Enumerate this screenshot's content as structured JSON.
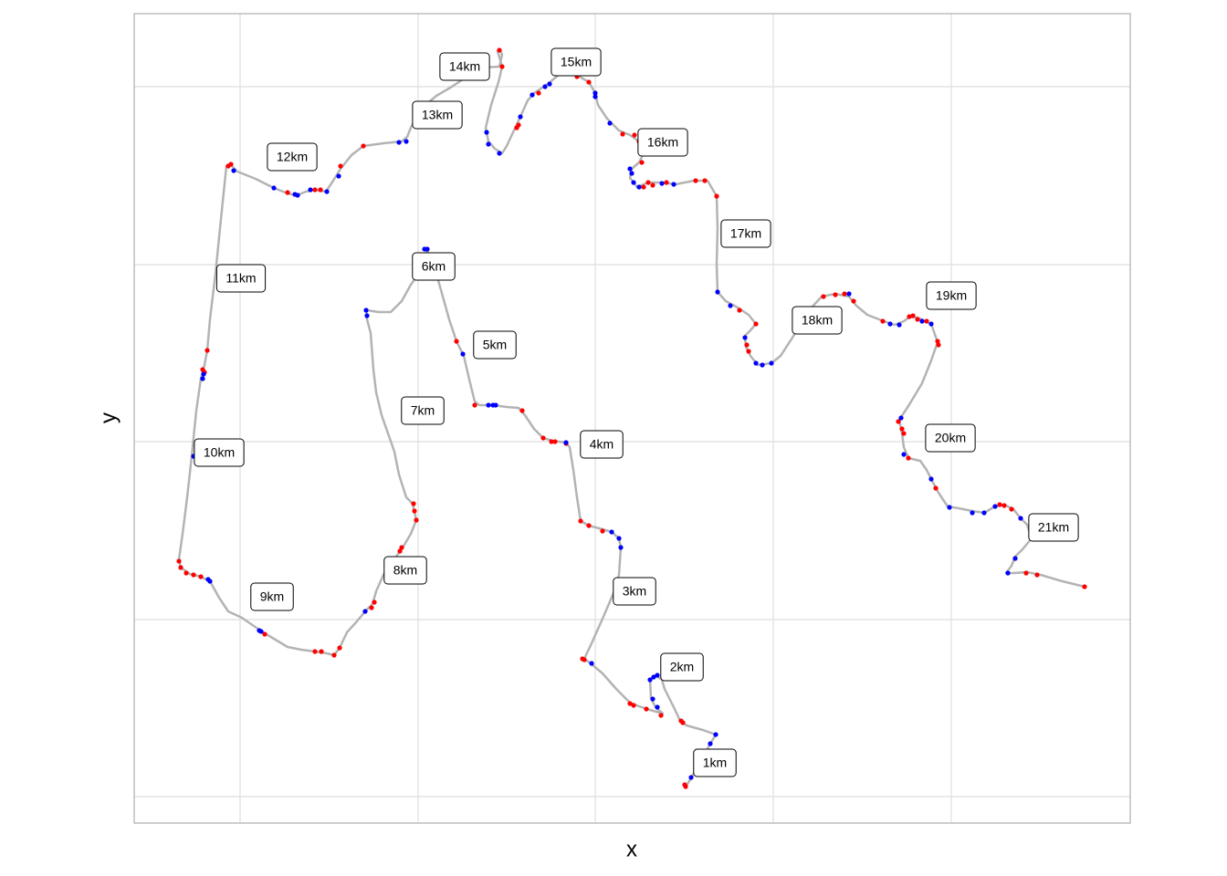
{
  "chart_data": {
    "type": "line",
    "xlabel": "x",
    "ylabel": "y",
    "color": "#b3b3b3",
    "grid": true,
    "xlim": [
      147,
      1238
    ],
    "ylim": [
      -902,
      -15
    ],
    "xticks": [
      263,
      458,
      652,
      847,
      1042
    ],
    "yticks": [
      -873,
      -679,
      -484,
      -290,
      -95
    ],
    "x": [
      751,
      757,
      778,
      784,
      770,
      752,
      745,
      738,
      733,
      728,
      725,
      718,
      712,
      713,
      718,
      726,
      712,
      700,
      690,
      675,
      660,
      647,
      640,
      648,
      660,
      672,
      678,
      680,
      678,
      670,
      660,
      645,
      636,
      632,
      628,
      624,
      620,
      605,
      595,
      585,
      575,
      568,
      555,
      540,
      525,
      520,
      515,
      508,
      500,
      492,
      485,
      478,
      472,
      468,
      462,
      450,
      440,
      428,
      415,
      402,
      401,
      406,
      409,
      412,
      418,
      425,
      432,
      437,
      445,
      452,
      456,
      450,
      440,
      430,
      420,
      412,
      408,
      400,
      390,
      380,
      372,
      366,
      358,
      345,
      330,
      315,
      305,
      290,
      278,
      265,
      250,
      240,
      230,
      220,
      208,
      198,
      196,
      200,
      205,
      210,
      215,
      220,
      224,
      227,
      230,
      236,
      242,
      248,
      253,
      260,
      280,
      300,
      315,
      325,
      335,
      345,
      357,
      365,
      373,
      385,
      398,
      420,
      440,
      446,
      450,
      460,
      478,
      495,
      510,
      530,
      547,
      550,
      548,
      545,
      550,
      546,
      538,
      532,
      535,
      542,
      550,
      555,
      562,
      570,
      578,
      585,
      600,
      612,
      628,
      645,
      652,
      655,
      665,
      678,
      690,
      700,
      704,
      700,
      692,
      690,
      698,
      710,
      725,
      740,
      760,
      775,
      785,
      786,
      785,
      786,
      795,
      808,
      820,
      828,
      822,
      816,
      817,
      822,
      830,
      845,
      855,
      868,
      880,
      888,
      900,
      915,
      930,
      938,
      950,
      968,
      980,
      990,
      997,
      1005,
      1020,
      1027,
      1020,
      1010,
      995,
      985,
      988,
      990,
      995,
      1008,
      1015,
      1020,
      1028,
      1038,
      1050,
      1065,
      1078,
      1090,
      1100,
      1110,
      1118,
      1125,
      1130,
      1120,
      1112,
      1108,
      1102,
      1110,
      1125,
      1140,
      1160,
      1188
    ],
    "y": [
      -862,
      -853,
      -815,
      -805,
      -800,
      -795,
      -790,
      -775,
      -765,
      -755,
      -745,
      -740,
      -745,
      -765,
      -775,
      -782,
      -778,
      -774,
      -770,
      -755,
      -738,
      -727,
      -722,
      -705,
      -678,
      -650,
      -630,
      -600,
      -590,
      -583,
      -580,
      -576,
      -571,
      -545,
      -515,
      -490,
      -485,
      -483,
      -480,
      -470,
      -455,
      -447,
      -446,
      -444,
      -444,
      -440,
      -420,
      -390,
      -374,
      -350,
      -325,
      -300,
      -290,
      -273,
      -295,
      -312,
      -330,
      -342,
      -342,
      -340,
      -346,
      -365,
      -405,
      -430,
      -455,
      -475,
      -495,
      -520,
      -545,
      -552,
      -570,
      -585,
      -602,
      -615,
      -630,
      -648,
      -662,
      -670,
      -682,
      -693,
      -710,
      -718,
      -716,
      -714,
      -712,
      -709,
      -703,
      -694,
      -686,
      -677,
      -670,
      -655,
      -637,
      -632,
      -629,
      -622,
      -613,
      -585,
      -545,
      -500,
      -450,
      -415,
      -400,
      -384,
      -350,
      -300,
      -240,
      -182,
      -181,
      -188,
      -196,
      -206,
      -212,
      -214,
      -210,
      -208,
      -210,
      -198,
      -185,
      -170,
      -160,
      -157,
      -155,
      -150,
      -140,
      -120,
      -105,
      -95,
      -85,
      -74,
      -73,
      -60,
      -55,
      -56,
      -73,
      -90,
      -115,
      -140,
      -155,
      -163,
      -168,
      -160,
      -145,
      -128,
      -110,
      -102,
      -92,
      -82,
      -80,
      -90,
      -102,
      -115,
      -130,
      -143,
      -148,
      -155,
      -170,
      -178,
      -185,
      -195,
      -205,
      -200,
      -200,
      -202,
      -198,
      -198,
      -215,
      -250,
      -290,
      -320,
      -330,
      -337,
      -345,
      -355,
      -362,
      -368,
      -380,
      -390,
      -400,
      -398,
      -390,
      -370,
      -350,
      -338,
      -325,
      -322,
      -325,
      -335,
      -345,
      -352,
      -356,
      -352,
      -347,
      -348,
      -355,
      -375,
      -395,
      -420,
      -445,
      -460,
      -475,
      -490,
      -502,
      -505,
      -515,
      -525,
      -540,
      -555,
      -557,
      -560,
      -562,
      -555,
      -553,
      -558,
      -568,
      -575,
      -590,
      -602,
      -610,
      -620,
      -628,
      -628,
      -627,
      -630,
      -636,
      -643
    ],
    "points": [
      {
        "color": "#ff0000",
        "x": [
          751,
          750,
          748,
          746,
          724,
          708,
          694,
          690,
          640,
          638,
          636,
          645,
          660,
          595,
          604,
          608,
          500,
          520,
          572,
          620,
          453,
          454,
          456,
          440,
          438,
          410,
          407,
          372,
          366,
          352,
          345,
          290,
          196,
          198,
          204,
          212,
          220,
          227,
          224,
          222,
          250,
          253,
          315,
          345,
          351,
          373,
          398,
          547,
          550,
          566,
          568,
          590,
          632,
          645,
          682,
          695,
          700,
          703,
          705,
          710,
          715,
          730,
          762,
          772,
          785,
          810,
          828,
          818,
          820,
          902,
          915,
          925,
          935,
          967,
          996,
          1000,
          1005,
          1015,
          1027,
          1028,
          984,
          988,
          990,
          995,
          1025,
          1095,
          1100,
          1108,
          1124,
          1136,
          1188
        ],
        "y": [
          -862,
          -860,
          -792,
          -790,
          -784,
          -777,
          -773,
          -771,
          -723,
          -722,
          -571,
          -576,
          -582,
          -480,
          -484,
          -484,
          -374,
          -444,
          -450,
          -486,
          -552,
          -560,
          -570,
          -600,
          -604,
          -660,
          -666,
          -710,
          -718,
          -714,
          -714,
          -695,
          -615,
          -622,
          -628,
          -630,
          -632,
          -384,
          -408,
          -405,
          -182,
          -180,
          -211,
          -208,
          -208,
          -182,
          -160,
          -55,
          -73,
          -140,
          -137,
          -102,
          -84,
          -90,
          -147,
          -148,
          -155,
          -178,
          -205,
          -200,
          -203,
          -200,
          -198,
          -198,
          -215,
          -340,
          -355,
          -378,
          -385,
          -325,
          -323,
          -322,
          -330,
          -352,
          -347,
          -346,
          -350,
          -352,
          -374,
          -378,
          -462,
          -470,
          -475,
          -502,
          -535,
          -553,
          -554,
          -558,
          -628,
          -630,
          -643
        ]
      },
      {
        "color": "#0000ff",
        "x": [
          757,
          778,
          784,
          712,
          716,
          720,
          715,
          720,
          648,
          678,
          680,
          670,
          620,
          507,
          535,
          540,
          543,
          468,
          465,
          401,
          402,
          212,
          222,
          223,
          256,
          300,
          323,
          326,
          340,
          358,
          371,
          437,
          445,
          533,
          535,
          547,
          570,
          583,
          597,
          602,
          652,
          652,
          668,
          690,
          692,
          694,
          700,
          725,
          738,
          786,
          800,
          816,
          828,
          835,
          845,
          930,
          975,
          985,
          1010,
          1020,
          987,
          990,
          1020,
          1040,
          1065,
          1078,
          1090,
          1118,
          1112,
          1104,
          228,
          230,
          284,
          286,
          400
        ],
        "y": [
          -852,
          -815,
          -805,
          -745,
          -742,
          -740,
          -766,
          -775,
          -727,
          -590,
          -600,
          -583,
          -485,
          -388,
          -444,
          -444,
          -444,
          -273,
          -273,
          -340,
          -346,
          -500,
          -415,
          -410,
          -187,
          -206,
          -213,
          -214,
          -208,
          -210,
          -193,
          -156,
          -155,
          -145,
          -158,
          -168,
          -128,
          -104,
          -95,
          -92,
          -102,
          -106,
          -135,
          -185,
          -190,
          -200,
          -205,
          -201,
          -202,
          -320,
          -335,
          -370,
          -398,
          -400,
          -398,
          -322,
          -355,
          -356,
          -352,
          -355,
          -458,
          -498,
          -525,
          -556,
          -562,
          -562,
          -555,
          -568,
          -612,
          -628,
          -635,
          -637,
          -691,
          -692,
          -670
        ]
      }
    ],
    "annotations": [
      {
        "text": "1km",
        "x": 783,
        "y": -836
      },
      {
        "text": "2km",
        "x": 747,
        "y": -731
      },
      {
        "text": "3km",
        "x": 695,
        "y": -648
      },
      {
        "text": "4km",
        "x": 659,
        "y": -487
      },
      {
        "text": "5km",
        "x": 542,
        "y": -378
      },
      {
        "text": "6km",
        "x": 475,
        "y": -292
      },
      {
        "text": "7km",
        "x": 463,
        "y": -450
      },
      {
        "text": "8km",
        "x": 444,
        "y": -625
      },
      {
        "text": "9km",
        "x": 298,
        "y": -654
      },
      {
        "text": "10km",
        "x": 240,
        "y": -496
      },
      {
        "text": "11km",
        "x": 264,
        "y": -305
      },
      {
        "text": "12km",
        "x": 320,
        "y": -172
      },
      {
        "text": "13km",
        "x": 479,
        "y": -126
      },
      {
        "text": "14km",
        "x": 509,
        "y": -73
      },
      {
        "text": "15km",
        "x": 631,
        "y": -68
      },
      {
        "text": "16km",
        "x": 726,
        "y": -156
      },
      {
        "text": "17km",
        "x": 817,
        "y": -256
      },
      {
        "text": "18km",
        "x": 895,
        "y": -351
      },
      {
        "text": "19km",
        "x": 1042,
        "y": -324
      },
      {
        "text": "20km",
        "x": 1041,
        "y": -480
      },
      {
        "text": "21km",
        "x": 1154,
        "y": -578
      }
    ]
  }
}
